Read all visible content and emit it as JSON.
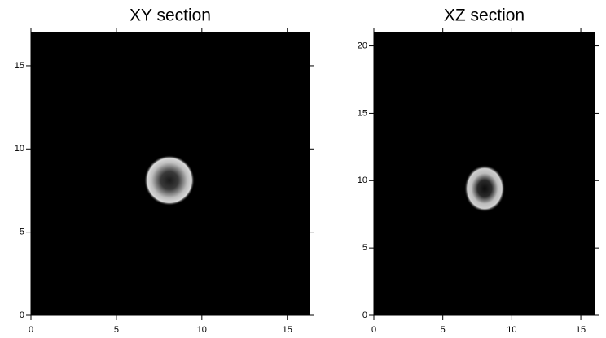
{
  "chart_data": [
    {
      "type": "image",
      "title": "XY section",
      "xlim": [
        0,
        16.3
      ],
      "ylim": [
        0,
        17
      ],
      "xticks": [
        0,
        5,
        10,
        15
      ],
      "yticks": [
        0,
        5,
        10,
        15
      ]
    },
    {
      "type": "image",
      "title": "XZ section",
      "xlim": [
        0,
        16
      ],
      "ylim": [
        0,
        21
      ],
      "xticks": [
        0,
        5,
        10,
        15
      ],
      "yticks": [
        0,
        5,
        10,
        15,
        20
      ]
    }
  ]
}
